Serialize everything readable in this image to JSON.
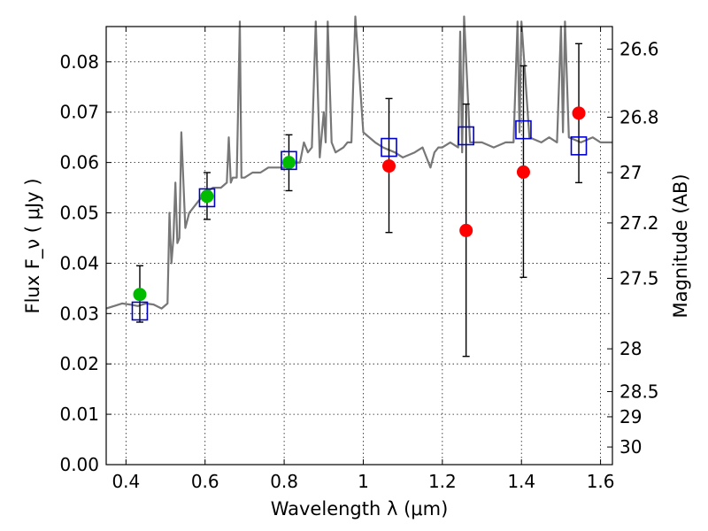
{
  "chart_data": {
    "type": "scatter",
    "xlabel": "Wavelength  λ (μm)",
    "ylabel": "Flux  F_ν  ( μJy )",
    "ylabel_right": "Magnitude (AB)",
    "xlim": [
      0.35,
      1.63
    ],
    "ylim": [
      0.0,
      0.087
    ],
    "grid": true,
    "xticks": [
      0.4,
      0.6,
      0.8,
      1.0,
      1.2,
      1.4,
      1.6
    ],
    "xtick_labels": [
      "0.4",
      "0.6",
      "0.8",
      "1",
      "1.2",
      "1.4",
      "1.6"
    ],
    "yticks": [
      0.0,
      0.01,
      0.02,
      0.03,
      0.04,
      0.05,
      0.06,
      0.07,
      0.08
    ],
    "ytick_labels": [
      "0.00",
      "0.01",
      "0.02",
      "0.03",
      "0.04",
      "0.05",
      "0.06",
      "0.07",
      "0.08"
    ],
    "right_ticks": [
      {
        "flux": 0.0825,
        "label": "26.6"
      },
      {
        "flux": 0.069,
        "label": "26.8"
      },
      {
        "flux": 0.058,
        "label": "27"
      },
      {
        "flux": 0.048,
        "label": "27.2"
      },
      {
        "flux": 0.037,
        "label": "27.5"
      },
      {
        "flux": 0.023,
        "label": "28"
      },
      {
        "flux": 0.0145,
        "label": "28.5"
      },
      {
        "flux": 0.0095,
        "label": "29"
      },
      {
        "flux": 0.0035,
        "label": "30"
      }
    ],
    "series": [
      {
        "kind": "detected",
        "color": "#00bb00",
        "points": [
          {
            "x": 0.435,
            "y": 0.0338,
            "ylo": 0.0283,
            "yhi": 0.0395
          },
          {
            "x": 0.605,
            "y": 0.0533,
            "ylo": 0.0487,
            "yhi": 0.058
          },
          {
            "x": 0.812,
            "y": 0.06,
            "ylo": 0.0544,
            "yhi": 0.0655
          }
        ]
      },
      {
        "kind": "upper-limit",
        "color": "#ff0000",
        "points": [
          {
            "x": 1.065,
            "y": 0.0593,
            "ylo": 0.0461,
            "yhi": 0.0727
          },
          {
            "x": 1.26,
            "y": 0.0465,
            "ylo": 0.0215,
            "yhi": 0.0716
          },
          {
            "x": 1.405,
            "y": 0.0581,
            "ylo": 0.0372,
            "yhi": 0.0792
          },
          {
            "x": 1.545,
            "y": 0.0698,
            "ylo": 0.056,
            "yhi": 0.0836
          }
        ]
      },
      {
        "kind": "model-photometry",
        "color": "#0000cc",
        "points": [
          {
            "x": 0.435,
            "y": 0.0305
          },
          {
            "x": 0.605,
            "y": 0.053
          },
          {
            "x": 0.812,
            "y": 0.0604
          },
          {
            "x": 1.065,
            "y": 0.063
          },
          {
            "x": 1.26,
            "y": 0.0653
          },
          {
            "x": 1.405,
            "y": 0.0665
          },
          {
            "x": 1.545,
            "y": 0.0633
          }
        ]
      }
    ],
    "spectrum": {
      "color": "#777777",
      "x": [
        0.35,
        0.37,
        0.39,
        0.41,
        0.43,
        0.45,
        0.47,
        0.49,
        0.505,
        0.51,
        0.515,
        0.52,
        0.525,
        0.53,
        0.535,
        0.54,
        0.55,
        0.56,
        0.57,
        0.58,
        0.59,
        0.6,
        0.62,
        0.64,
        0.655,
        0.66,
        0.665,
        0.67,
        0.68,
        0.688,
        0.692,
        0.7,
        0.72,
        0.74,
        0.76,
        0.78,
        0.8,
        0.82,
        0.84,
        0.85,
        0.86,
        0.87,
        0.88,
        0.89,
        0.9,
        0.905,
        0.91,
        0.92,
        0.93,
        0.95,
        0.96,
        0.97,
        0.98,
        1.0,
        1.03,
        1.05,
        1.08,
        1.1,
        1.13,
        1.15,
        1.17,
        1.18,
        1.19,
        1.2,
        1.22,
        1.24,
        1.245,
        1.25,
        1.255,
        1.27,
        1.3,
        1.33,
        1.36,
        1.38,
        1.39,
        1.395,
        1.4,
        1.42,
        1.45,
        1.47,
        1.49,
        1.5,
        1.505,
        1.51,
        1.52,
        1.55,
        1.58,
        1.6,
        1.63
      ],
      "y": [
        0.031,
        0.0315,
        0.032,
        0.0318,
        0.0315,
        0.032,
        0.0318,
        0.031,
        0.032,
        0.05,
        0.04,
        0.045,
        0.056,
        0.044,
        0.045,
        0.066,
        0.047,
        0.05,
        0.051,
        0.052,
        0.053,
        0.054,
        0.055,
        0.055,
        0.056,
        0.065,
        0.056,
        0.057,
        0.057,
        0.088,
        0.057,
        0.057,
        0.058,
        0.058,
        0.059,
        0.059,
        0.059,
        0.06,
        0.06,
        0.064,
        0.062,
        0.063,
        0.088,
        0.061,
        0.07,
        0.064,
        0.088,
        0.064,
        0.062,
        0.063,
        0.064,
        0.064,
        0.09,
        0.066,
        0.064,
        0.063,
        0.062,
        0.061,
        0.062,
        0.063,
        0.059,
        0.062,
        0.063,
        0.063,
        0.064,
        0.063,
        0.086,
        0.062,
        0.09,
        0.064,
        0.064,
        0.063,
        0.064,
        0.064,
        0.088,
        0.066,
        0.088,
        0.065,
        0.064,
        0.065,
        0.064,
        0.087,
        0.066,
        0.088,
        0.065,
        0.064,
        0.065,
        0.064,
        0.064
      ]
    }
  }
}
